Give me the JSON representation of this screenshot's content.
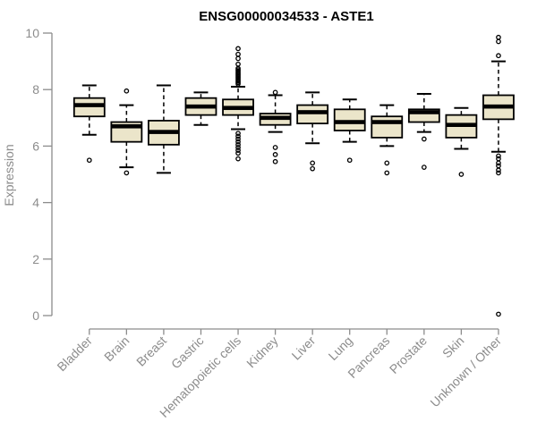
{
  "chart_data": {
    "type": "boxplot",
    "title": "ENSG00000034533 - ASTE1",
    "ylabel": "Expression",
    "xlabel": "",
    "ylim": [
      0,
      10
    ],
    "yticks": [
      0,
      2,
      4,
      6,
      8,
      10
    ],
    "grid": false,
    "legend": "none",
    "categories": [
      "Bladder",
      "Brain",
      "Breast",
      "Gastric",
      "Hematopoietic cells",
      "Kidney",
      "Liver",
      "Lung",
      "Pancreas",
      "Prostate",
      "Skin",
      "Unknown / Other"
    ],
    "series": [
      {
        "name": "Bladder",
        "whisker_low": 6.4,
        "q1": 7.05,
        "median": 7.45,
        "q3": 7.7,
        "whisker_high": 8.15,
        "outliers": [
          5.5
        ]
      },
      {
        "name": "Brain",
        "whisker_low": 5.25,
        "q1": 6.15,
        "median": 6.7,
        "q3": 6.85,
        "whisker_high": 7.45,
        "outliers": [
          7.95,
          5.05
        ]
      },
      {
        "name": "Breast",
        "whisker_low": 5.05,
        "q1": 6.05,
        "median": 6.5,
        "q3": 6.9,
        "whisker_high": 8.15,
        "outliers": []
      },
      {
        "name": "Gastric",
        "whisker_low": 6.75,
        "q1": 7.1,
        "median": 7.4,
        "q3": 7.7,
        "whisker_high": 7.9,
        "outliers": []
      },
      {
        "name": "Hematopoietic cells",
        "whisker_low": 6.6,
        "q1": 7.1,
        "median": 7.35,
        "q3": 7.65,
        "whisker_high": 8.1,
        "outliers": [
          9.45,
          9.25,
          9.1,
          8.9,
          8.75,
          8.7,
          8.65,
          8.6,
          8.55,
          8.5,
          8.45,
          8.4,
          8.35,
          8.3,
          8.25,
          8.2,
          6.45,
          6.35,
          6.25,
          6.15,
          6.05,
          5.95,
          5.85,
          5.75,
          5.55
        ]
      },
      {
        "name": "Kidney",
        "whisker_low": 6.5,
        "q1": 6.75,
        "median": 7.0,
        "q3": 7.15,
        "whisker_high": 7.8,
        "outliers": [
          7.9,
          5.95,
          5.7,
          5.45
        ]
      },
      {
        "name": "Liver",
        "whisker_low": 6.1,
        "q1": 6.8,
        "median": 7.2,
        "q3": 7.45,
        "whisker_high": 7.9,
        "outliers": [
          5.4,
          5.2
        ]
      },
      {
        "name": "Lung",
        "whisker_low": 6.15,
        "q1": 6.55,
        "median": 6.85,
        "q3": 7.3,
        "whisker_high": 7.65,
        "outliers": [
          5.5
        ]
      },
      {
        "name": "Pancreas",
        "whisker_low": 6.0,
        "q1": 6.3,
        "median": 6.85,
        "q3": 7.05,
        "whisker_high": 7.45,
        "outliers": [
          5.4,
          5.05
        ]
      },
      {
        "name": "Prostate",
        "whisker_low": 6.5,
        "q1": 6.85,
        "median": 7.2,
        "q3": 7.3,
        "whisker_high": 7.85,
        "outliers": [
          6.25,
          5.25
        ]
      },
      {
        "name": "Skin",
        "whisker_low": 5.9,
        "q1": 6.3,
        "median": 6.75,
        "q3": 7.1,
        "whisker_high": 7.35,
        "outliers": [
          5.0
        ]
      },
      {
        "name": "Unknown / Other",
        "whisker_low": 5.8,
        "q1": 6.95,
        "median": 7.4,
        "q3": 7.8,
        "whisker_high": 9.0,
        "outliers": [
          9.85,
          9.7,
          9.2,
          5.65,
          5.55,
          5.4,
          5.3,
          5.15,
          5.05,
          0.05
        ]
      }
    ],
    "colors": {
      "box_fill": "#EBE5CA",
      "box_stroke": "#000000",
      "median_color": "#000000",
      "whisker_color": "#000000",
      "outlier_color": "#000000",
      "axis_color": "#8c8c8c",
      "label_color": "#8c8c8c",
      "title_color": "#000000",
      "background": "#FFFFFF"
    },
    "style": {
      "whisker_linestyle": "dashed",
      "outlier_marker": "open-circle",
      "xlabel_rotation_deg": 45
    }
  }
}
